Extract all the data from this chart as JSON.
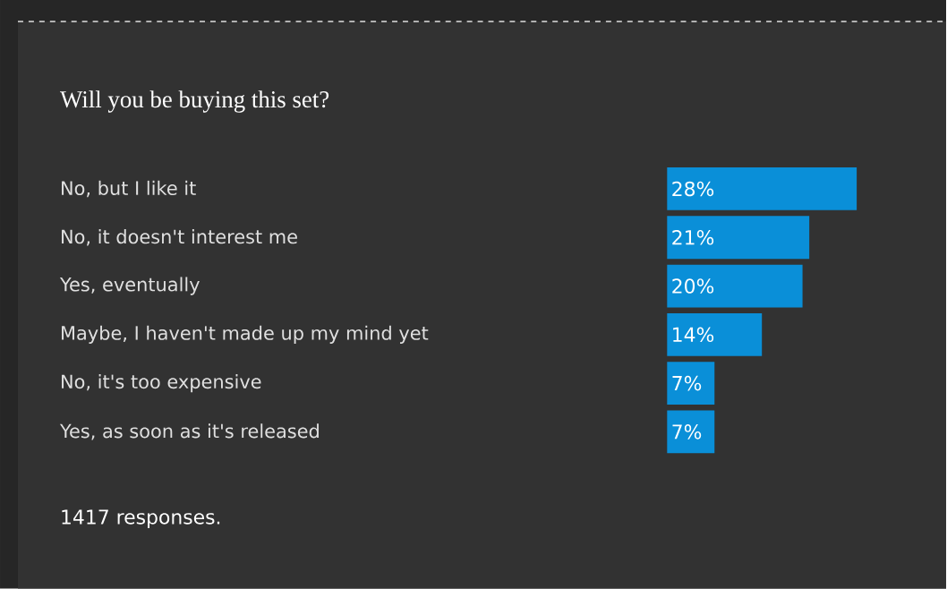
{
  "chart_data": {
    "type": "bar",
    "orientation": "horizontal",
    "title": "Will you be buying this set?",
    "categories": [
      "No, but I like it",
      "No, it doesn't interest me",
      "Yes, eventually",
      "Maybe, I haven't made up my mind yet",
      "No, it's too expensive",
      "Yes, as soon as it's released"
    ],
    "values": [
      28,
      21,
      20,
      14,
      7,
      7
    ],
    "value_labels": [
      "28%",
      "21%",
      "20%",
      "14%",
      "7%",
      "7%"
    ],
    "color": "#0a8fd8",
    "annotations": [
      "1417 responses."
    ]
  }
}
